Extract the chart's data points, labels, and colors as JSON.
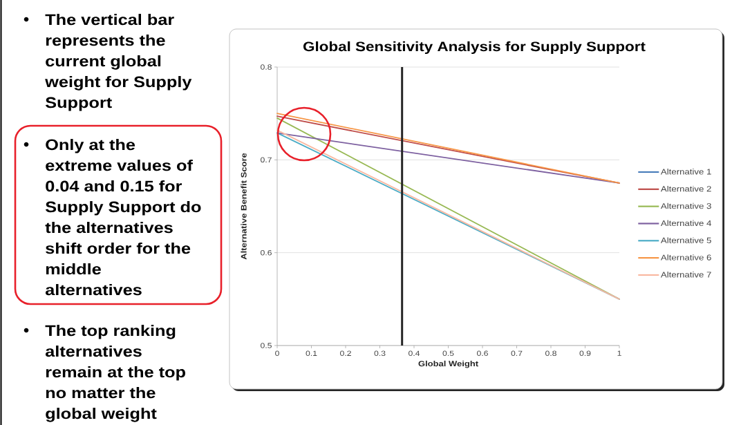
{
  "chart_data": {
    "type": "line",
    "title": "Global Sensitivity Analysis for Supply Support",
    "xlabel": "Global Weight",
    "ylabel": "Alternative Benefit Score",
    "x": [
      0,
      1
    ],
    "series": [
      {
        "name": "Alternative 1",
        "color": "#4a7ebb",
        "values": [
          null,
          null
        ]
      },
      {
        "name": "Alternative 2",
        "color": "#be4b48",
        "values": [
          0.747,
          0.675
        ]
      },
      {
        "name": "Alternative 3",
        "color": "#98b954",
        "values": [
          0.745,
          0.55
        ]
      },
      {
        "name": "Alternative 4",
        "color": "#7d60a0",
        "values": [
          0.729,
          0.675
        ]
      },
      {
        "name": "Alternative 5",
        "color": "#4bacc6",
        "values": [
          0.729,
          0.55
        ]
      },
      {
        "name": "Alternative 6",
        "color": "#f79646",
        "values": [
          0.75,
          0.675
        ]
      },
      {
        "name": "Alternative 7",
        "color": "#f9b8a0",
        "values": [
          0.732,
          0.55
        ]
      }
    ],
    "xlim": [
      0,
      1
    ],
    "ylim": [
      0.5,
      0.8
    ],
    "xticks": [
      0,
      0.1,
      0.2,
      0.3,
      0.4,
      0.5,
      0.6,
      0.7,
      0.8,
      0.9,
      1
    ],
    "yticks": [
      0.5,
      0.6,
      0.7,
      0.8
    ],
    "grid": "y",
    "legend": "right",
    "ref_lines": [
      {
        "axis": "x",
        "value": 0.365,
        "color": "#262626"
      }
    ],
    "annotations": [
      "The vertical bar represents the current global weight for Supply Support",
      "Only at the extreme values of 0.04 and 0.15 for Supply Support do the alternatives shift order for the middle alternatives",
      "The top ranking alternatives remain at the top no matter the global weight"
    ]
  }
}
